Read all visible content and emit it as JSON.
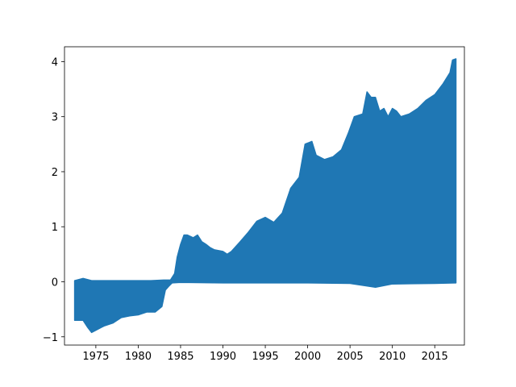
{
  "chart_data": {
    "type": "area",
    "title": "",
    "xlabel": "",
    "ylabel": "",
    "xlim": [
      1971.3,
      2018.5
    ],
    "ylim": [
      -1.15,
      4.27
    ],
    "grid": false,
    "legend": "none",
    "x_ticks": [
      1975,
      1980,
      1985,
      1990,
      1995,
      2000,
      2005,
      2010,
      2015
    ],
    "x_tick_labels": [
      "1975",
      "1980",
      "1985",
      "1990",
      "1995",
      "2000",
      "2005",
      "2010",
      "2015"
    ],
    "y_ticks": [
      -1,
      0,
      1,
      2,
      3,
      4
    ],
    "y_tick_labels": [
      "−1",
      "0",
      "1",
      "2",
      "3",
      "4"
    ],
    "series": [
      {
        "color": "#1f77b4",
        "upper": [
          [
            1972.5,
            0.02
          ],
          [
            1973.5,
            0.06
          ],
          [
            1974.5,
            0.02
          ],
          [
            1976.0,
            0.02
          ],
          [
            1978.0,
            0.02
          ],
          [
            1980.0,
            0.02
          ],
          [
            1981.5,
            0.02
          ],
          [
            1983.0,
            0.03
          ],
          [
            1983.8,
            0.03
          ],
          [
            1984.3,
            0.15
          ],
          [
            1984.6,
            0.45
          ],
          [
            1985.0,
            0.68
          ],
          [
            1985.4,
            0.85
          ],
          [
            1985.8,
            0.85
          ],
          [
            1986.5,
            0.8
          ],
          [
            1987.0,
            0.85
          ],
          [
            1987.5,
            0.73
          ],
          [
            1988.0,
            0.68
          ],
          [
            1988.5,
            0.62
          ],
          [
            1989.0,
            0.58
          ],
          [
            1990.0,
            0.55
          ],
          [
            1990.5,
            0.5
          ],
          [
            1991.0,
            0.55
          ],
          [
            1992.0,
            0.72
          ],
          [
            1993.0,
            0.9
          ],
          [
            1994.0,
            1.1
          ],
          [
            1995.0,
            1.17
          ],
          [
            1996.0,
            1.08
          ],
          [
            1997.0,
            1.25
          ],
          [
            1998.0,
            1.7
          ],
          [
            1999.0,
            1.9
          ],
          [
            1999.7,
            2.5
          ],
          [
            2000.5,
            2.55
          ],
          [
            2001.0,
            2.3
          ],
          [
            2002.0,
            2.22
          ],
          [
            2003.0,
            2.27
          ],
          [
            2004.0,
            2.4
          ],
          [
            2004.8,
            2.7
          ],
          [
            2005.5,
            3.0
          ],
          [
            2006.5,
            3.05
          ],
          [
            2007.0,
            3.45
          ],
          [
            2007.5,
            3.35
          ],
          [
            2008.0,
            3.35
          ],
          [
            2008.5,
            3.1
          ],
          [
            2009.0,
            3.15
          ],
          [
            2009.5,
            3.0
          ],
          [
            2010.0,
            3.15
          ],
          [
            2010.5,
            3.1
          ],
          [
            2011.0,
            3.0
          ],
          [
            2012.0,
            3.05
          ],
          [
            2013.0,
            3.15
          ],
          [
            2014.0,
            3.3
          ],
          [
            2015.0,
            3.4
          ],
          [
            2016.0,
            3.6
          ],
          [
            2016.8,
            3.8
          ],
          [
            2017.1,
            4.03
          ],
          [
            2017.5,
            4.05
          ]
        ],
        "lower": [
          [
            1972.5,
            -0.7
          ],
          [
            1973.5,
            -0.7
          ],
          [
            1974.0,
            -0.82
          ],
          [
            1974.5,
            -0.92
          ],
          [
            1975.0,
            -0.88
          ],
          [
            1976.0,
            -0.8
          ],
          [
            1977.0,
            -0.75
          ],
          [
            1978.0,
            -0.65
          ],
          [
            1979.0,
            -0.62
          ],
          [
            1980.0,
            -0.6
          ],
          [
            1981.0,
            -0.55
          ],
          [
            1982.0,
            -0.55
          ],
          [
            1982.8,
            -0.45
          ],
          [
            1983.2,
            -0.15
          ],
          [
            1983.6,
            -0.08
          ],
          [
            1984.0,
            -0.02
          ],
          [
            1985.0,
            -0.01
          ],
          [
            1990.0,
            -0.02
          ],
          [
            1995.0,
            -0.02
          ],
          [
            2000.0,
            -0.02
          ],
          [
            2005.0,
            -0.03
          ],
          [
            2008.0,
            -0.1
          ],
          [
            2010.0,
            -0.04
          ],
          [
            2015.0,
            -0.03
          ],
          [
            2017.5,
            -0.02
          ]
        ]
      }
    ]
  }
}
